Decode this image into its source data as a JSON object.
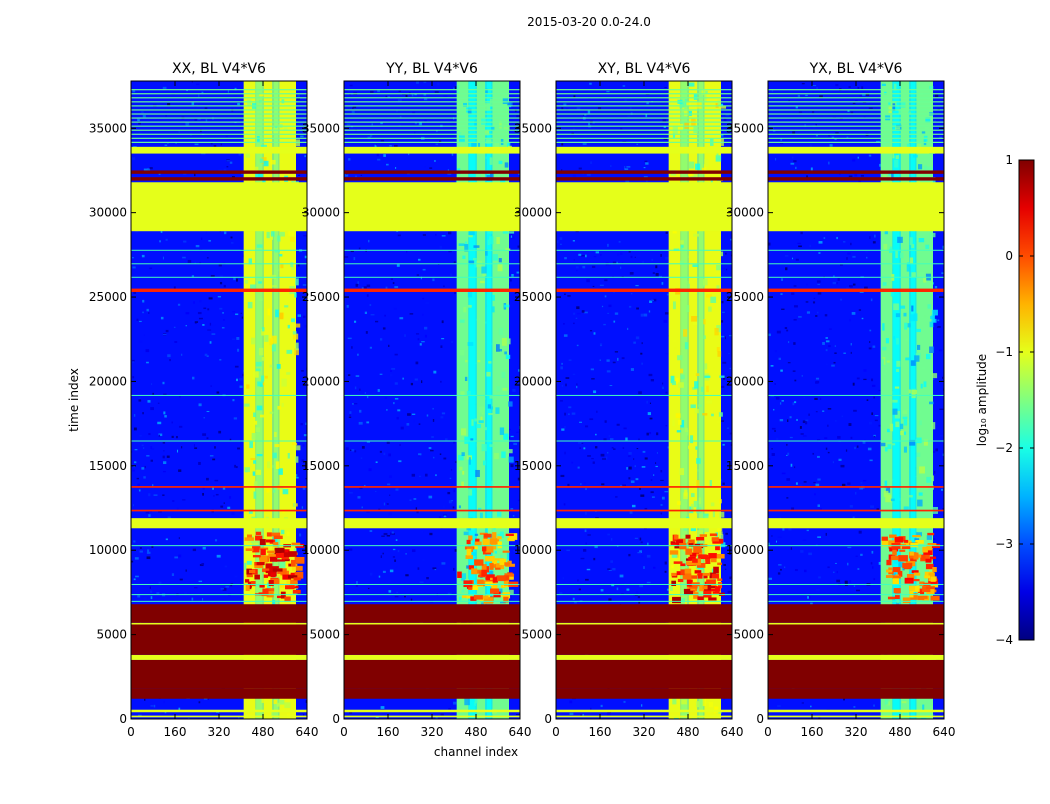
{
  "chart_data": {
    "type": "heatmap",
    "title": "2015-03-20 0.0-24.0",
    "xlabel": "channel index",
    "ylabel": "time index",
    "xlim": [
      0,
      640
    ],
    "ylim": [
      0,
      37800
    ],
    "xticks": [
      "0",
      "160",
      "320",
      "480",
      "640"
    ],
    "xtick_values": [
      0,
      160,
      320,
      480,
      640
    ],
    "yticks": [
      "0",
      "5000",
      "10000",
      "15000",
      "20000",
      "25000",
      "30000",
      "35000"
    ],
    "ytick_values": [
      0,
      5000,
      10000,
      15000,
      20000,
      25000,
      30000,
      35000
    ],
    "panels": [
      {
        "title": "XX, BL V4*V6",
        "strong": true
      },
      {
        "title": "YY, BL V4*V6",
        "strong": false
      },
      {
        "title": "XY, BL V4*V6",
        "strong": true
      },
      {
        "title": "YX, BL V4*V6",
        "strong": false
      }
    ],
    "colorbar": {
      "label": "log₁₀ amplitude",
      "range": [
        -4,
        1
      ],
      "ticks": [
        "1",
        "0",
        "−1",
        "−2",
        "−3",
        "−4"
      ],
      "tick_values": [
        1,
        0,
        -1,
        -2,
        -3,
        -4
      ],
      "colormap": "jet"
    },
    "flagged_rows": [
      {
        "from": 100,
        "to": 200,
        "level": -1
      },
      {
        "from": 400,
        "to": 550,
        "level": -1
      },
      {
        "from": 1200,
        "to": 1800,
        "level": 1
      },
      {
        "from": 1800,
        "to": 3500,
        "level": 1
      },
      {
        "from": 3500,
        "to": 3800,
        "level": -1
      },
      {
        "from": 3800,
        "to": 5600,
        "level": 1
      },
      {
        "from": 5600,
        "to": 5700,
        "level": -1
      },
      {
        "from": 5700,
        "to": 6800,
        "level": 1
      },
      {
        "from": 11300,
        "to": 11900,
        "level": -1
      },
      {
        "from": 12300,
        "to": 12400,
        "level": 0.2
      },
      {
        "from": 13700,
        "to": 13800,
        "level": 0.2
      },
      {
        "from": 25300,
        "to": 25500,
        "level": 0.2
      },
      {
        "from": 28900,
        "to": 31800,
        "level": -1
      },
      {
        "from": 31900,
        "to": 32100,
        "level": 1
      },
      {
        "from": 32300,
        "to": 32500,
        "level": 1
      },
      {
        "from": 33500,
        "to": 33900,
        "level": -1
      }
    ],
    "active_channel_band": [
      410,
      600
    ],
    "strong_emission_rows": [
      7200,
      11100
    ],
    "background_level": -3.3
  }
}
